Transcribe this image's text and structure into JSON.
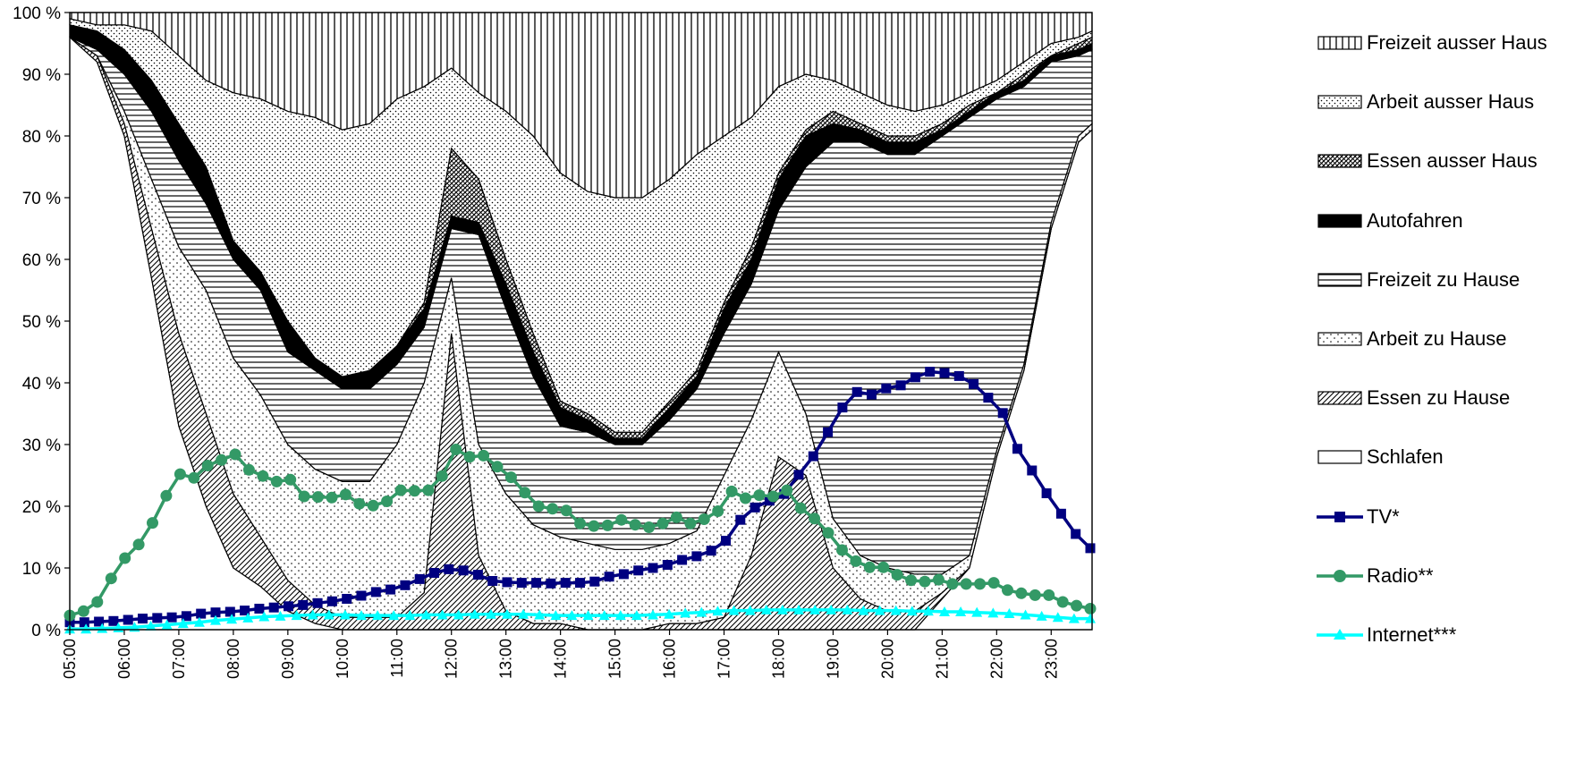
{
  "chart_data": {
    "type": "area",
    "y_axis": {
      "min": 0,
      "max": 100,
      "step": 10,
      "unit": "%",
      "tick_labels": [
        "0 %",
        "10 %",
        "20 %",
        "30 %",
        "40 %",
        "50 %",
        "60 %",
        "70 %",
        "80 %",
        "90 %",
        "100 %"
      ]
    },
    "x_tick_labels": [
      "05:00",
      "06:00",
      "07:00",
      "08:00",
      "09:00",
      "10:00",
      "11:00",
      "12:00",
      "13:00",
      "14:00",
      "15:00",
      "16:00",
      "17:00",
      "18:00",
      "19:00",
      "20:00",
      "21:00",
      "22:00",
      "23:00"
    ],
    "stacked_cumulative_boundaries": {
      "note_keys": "time → cumulative percent at top of each layer",
      "x": [
        "05:00",
        "05:30",
        "06:00",
        "06:30",
        "07:00",
        "07:30",
        "08:00",
        "08:30",
        "09:00",
        "09:30",
        "10:00",
        "10:30",
        "11:00",
        "11:30",
        "12:00",
        "12:30",
        "13:00",
        "13:30",
        "14:00",
        "14:30",
        "15:00",
        "15:30",
        "16:00",
        "16:30",
        "17:00",
        "17:30",
        "18:00",
        "18:30",
        "19:00",
        "19:30",
        "20:00",
        "20:30",
        "21:00",
        "21:30",
        "22:00",
        "22:30",
        "23:00",
        "23:30",
        "23:45"
      ],
      "Schlafen": [
        96,
        92,
        80,
        57,
        33,
        20,
        10,
        7,
        3,
        1,
        0,
        0,
        0,
        0,
        0,
        0,
        0,
        0,
        0,
        0,
        0,
        0,
        0,
        0,
        0,
        0,
        0,
        0,
        0,
        0,
        0,
        0,
        5,
        10,
        28,
        42,
        65,
        79,
        81
      ],
      "Essen zu Hause": [
        96,
        93,
        82,
        65,
        48,
        35,
        22,
        15,
        8,
        4,
        2,
        2,
        2,
        6,
        48,
        12,
        3,
        1,
        1,
        0,
        0,
        0,
        1,
        1,
        2,
        12,
        28,
        25,
        10,
        5,
        3,
        3,
        6,
        10,
        28,
        42,
        65,
        79,
        81
      ],
      "Arbeit zu Hause": [
        96,
        93,
        84,
        73,
        62,
        55,
        44,
        38,
        30,
        26,
        24,
        24,
        30,
        40,
        57,
        30,
        22,
        17,
        15,
        14,
        13,
        13,
        14,
        16,
        25,
        34,
        45,
        35,
        18,
        12,
        10,
        9,
        9,
        12,
        29,
        43,
        66,
        80,
        82
      ],
      "Freizeit zu Hause": [
        96,
        94,
        90,
        84,
        76,
        69,
        60,
        55,
        45,
        42,
        39,
        39,
        43,
        49,
        65,
        64,
        52,
        41,
        33,
        32,
        30,
        30,
        34,
        39,
        48,
        56,
        68,
        75,
        79,
        79,
        77,
        77,
        80,
        83,
        86,
        88,
        92,
        93,
        94
      ],
      "Autofahren": [
        98,
        97,
        94,
        89,
        82,
        75,
        63,
        58,
        50,
        44,
        41,
        42,
        46,
        52,
        67,
        66,
        56,
        45,
        36,
        34,
        31,
        31,
        36,
        41,
        52,
        60,
        73,
        80,
        82,
        81,
        79,
        79,
        81,
        84,
        87,
        89,
        93,
        94,
        95
      ],
      "Essen ausser Haus": [
        98,
        97,
        94,
        89,
        82,
        75,
        63,
        58,
        50,
        44,
        41,
        42,
        46,
        53,
        78,
        73,
        60,
        48,
        37,
        35,
        32,
        32,
        37,
        42,
        53,
        62,
        74,
        81,
        84,
        82,
        80,
        80,
        82,
        85,
        87,
        90,
        93,
        95,
        96
      ],
      "Arbeit ausser Haus": [
        99,
        98,
        98,
        97,
        93,
        89,
        87,
        86,
        84,
        83,
        81,
        82,
        86,
        88,
        91,
        87,
        84,
        80,
        74,
        71,
        70,
        70,
        73,
        77,
        80,
        83,
        88,
        90,
        89,
        87,
        85,
        84,
        85,
        87,
        89,
        92,
        95,
        96,
        97
      ],
      "Freizeit ausser Haus": [
        100,
        100,
        100,
        100,
        100,
        100,
        100,
        100,
        100,
        100,
        100,
        100,
        100,
        100,
        100,
        100,
        100,
        100,
        100,
        100,
        100,
        100,
        100,
        100,
        100,
        100,
        100,
        100,
        100,
        100,
        100,
        100,
        100,
        100,
        100,
        100,
        100,
        100,
        100
      ]
    },
    "series": [
      {
        "name": "TV*",
        "color": "#000080",
        "marker": "square",
        "values": [
          1.2,
          1.2,
          1.3,
          1.4,
          1.6,
          1.8,
          1.9,
          2.0,
          2.2,
          2.6,
          2.8,
          2.9,
          3.1,
          3.4,
          3.6,
          3.8,
          4.0,
          4.3,
          4.6,
          5.0,
          5.5,
          6.1,
          6.5,
          7.2,
          8.2,
          9.2,
          9.8,
          9.6,
          8.9,
          7.9,
          7.7,
          7.6,
          7.6,
          7.5,
          7.6,
          7.6,
          7.8,
          8.6,
          9.0,
          9.6,
          10.0,
          10.5,
          11.3,
          11.9,
          12.8,
          14.4,
          17.8,
          19.8,
          20.9,
          22.0,
          25.1,
          28.1,
          32.0,
          36.0,
          38.5,
          38.1,
          39.1,
          39.6,
          40.9,
          41.8,
          41.6,
          41.1,
          39.8,
          37.6,
          35.1,
          29.3,
          25.8,
          22.1,
          18.8,
          15.5,
          13.2
        ]
      },
      {
        "name": "Radio**",
        "color": "#339966",
        "marker": "circle",
        "values": [
          2.3,
          3.0,
          4.5,
          8.3,
          11.6,
          13.8,
          17.3,
          21.7,
          25.2,
          24.6,
          26.6,
          27.5,
          28.4,
          25.9,
          24.9,
          24.0,
          24.3,
          21.6,
          21.5,
          21.4,
          21.9,
          20.4,
          20.1,
          20.8,
          22.6,
          22.5,
          22.6,
          24.9,
          29.2,
          28.0,
          28.2,
          26.4,
          24.7,
          22.2,
          20.0,
          19.6,
          19.3,
          17.2,
          16.8,
          16.9,
          17.8,
          17.0,
          16.6,
          17.2,
          18.2,
          17.2,
          17.9,
          19.2,
          22.4,
          21.3,
          21.8,
          21.6,
          22.6,
          19.7,
          18.0,
          15.7,
          12.9,
          11.1,
          10.1,
          10.1,
          8.9,
          8.0,
          7.8,
          8.1,
          7.4,
          7.4,
          7.4,
          7.6,
          6.4,
          5.9,
          5.6,
          5.6,
          4.5,
          3.9,
          3.4
        ]
      },
      {
        "name": "Internet***",
        "color": "#00ffff",
        "marker": "triangle",
        "values": [
          0.1,
          0.1,
          0.2,
          0.3,
          0.4,
          0.6,
          0.8,
          1.0,
          1.2,
          1.5,
          1.7,
          1.9,
          2.1,
          2.2,
          2.3,
          2.4,
          2.4,
          2.4,
          2.3,
          2.3,
          2.3,
          2.3,
          2.4,
          2.4,
          2.4,
          2.5,
          2.5,
          2.5,
          2.5,
          2.4,
          2.3,
          2.3,
          2.3,
          2.3,
          2.3,
          2.3,
          2.4,
          2.5,
          2.7,
          2.8,
          3.0,
          3.1,
          3.1,
          3.2,
          3.2,
          3.2,
          3.2,
          3.2,
          3.2,
          3.1,
          3.1,
          3.1,
          3.0,
          3.0,
          2.9,
          2.9,
          2.8,
          2.7,
          2.6,
          2.4,
          2.2,
          2.0,
          1.8,
          1.8
        ]
      }
    ],
    "legend": {
      "placement": "right",
      "entries": [
        "Freizeit ausser Haus",
        "Arbeit ausser Haus",
        "Essen ausser Haus",
        "Autofahren",
        "Freizeit zu Hause",
        "Arbeit zu Hause",
        "Essen zu Hause",
        "Schlafen",
        "TV*",
        "Radio**",
        "Internet***"
      ]
    }
  }
}
